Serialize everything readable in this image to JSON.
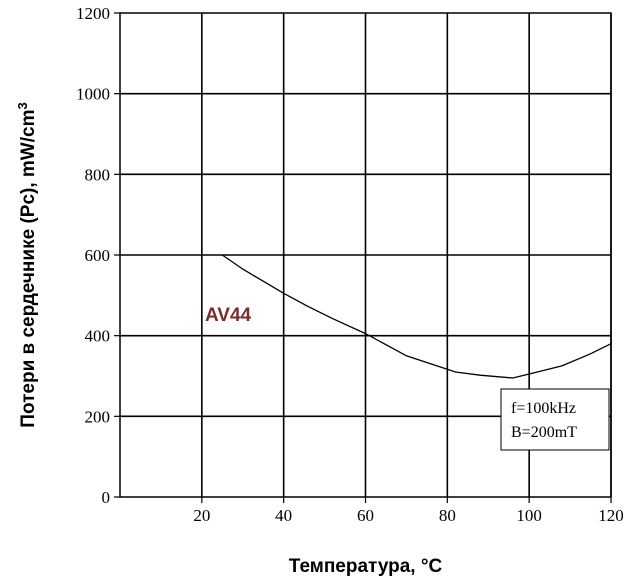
{
  "chart_data": {
    "type": "line",
    "title": "",
    "xlabel": "Температура, °C",
    "ylabel": "Потери в сердечнике (Pc), mW/cm",
    "ylabel_sup": "3",
    "xlim": [
      0,
      120
    ],
    "ylim": [
      0,
      1200
    ],
    "x_ticks": [
      20,
      40,
      60,
      80,
      100,
      120
    ],
    "y_ticks": [
      0,
      200,
      400,
      600,
      800,
      1000,
      1200
    ],
    "grid": true,
    "series": [
      {
        "name": "AV44",
        "color": "#7a2b2b",
        "line_color": "#000000",
        "x": [
          25,
          30,
          35,
          40,
          46,
          52,
          60,
          70,
          82,
          88,
          96,
          100,
          108,
          115,
          120
        ],
        "y": [
          600,
          565,
          535,
          505,
          472,
          442,
          405,
          350,
          310,
          302,
          295,
          305,
          325,
          355,
          380
        ]
      }
    ],
    "conditions": [
      "f=100kHz",
      "B=200mT"
    ]
  }
}
